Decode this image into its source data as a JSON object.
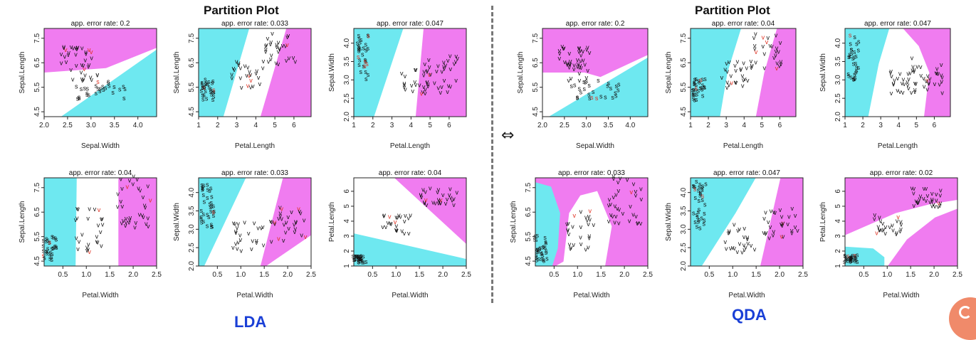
{
  "page": {
    "lda_title": "Partition Plot",
    "qda_title": "Partition Plot",
    "lda_label": "LDA",
    "qda_label": "QDA",
    "arrow_symbol": "⇔"
  },
  "colors": {
    "setosa_region": "#6ee8f0",
    "versicolor_region": "#ffffff",
    "virginica_region": "#f07cf0",
    "point": "#111111",
    "misclassified": "#e03020"
  },
  "chart_data": [
    {
      "type": "scatter",
      "method": "LDA",
      "title": "app. error rate: 0.2",
      "xlabel": "Sepal.Width",
      "ylabel": "Sepal.Length",
      "xticks": [
        2.0,
        2.5,
        3.0,
        3.5,
        4.0
      ],
      "xtick_labels": [
        "2.0",
        "2.5",
        "3.0",
        "3.5",
        "4.0"
      ],
      "yticks": [
        4.5,
        5.5,
        6.5,
        7.5
      ],
      "ytick_labels": [
        "4.5",
        "5.5",
        "6.5",
        "7.5"
      ],
      "xlim": [
        2.0,
        4.4
      ],
      "ylim": [
        4.3,
        7.9
      ]
    },
    {
      "type": "scatter",
      "method": "LDA",
      "title": "app. error rate: 0.033",
      "xlabel": "Petal.Length",
      "ylabel": "Sepal.Length",
      "xticks": [
        1,
        2,
        3,
        4,
        5,
        6
      ],
      "xtick_labels": [
        "1",
        "2",
        "3",
        "4",
        "5",
        "6"
      ],
      "yticks": [
        4.5,
        5.5,
        6.5,
        7.5
      ],
      "ytick_labels": [
        "4.5",
        "5.5",
        "6.5",
        "7.5"
      ],
      "xlim": [
        1.0,
        6.9
      ],
      "ylim": [
        4.3,
        7.9
      ]
    },
    {
      "type": "scatter",
      "method": "LDA",
      "title": "app. error rate: 0.047",
      "xlabel": "Petal.Length",
      "ylabel": "Sepal.Width",
      "xticks": [
        1,
        2,
        3,
        4,
        5,
        6
      ],
      "xtick_labels": [
        "1",
        "2",
        "3",
        "4",
        "5",
        "6"
      ],
      "yticks": [
        2.0,
        2.5,
        3.0,
        3.5,
        4.0
      ],
      "ytick_labels": [
        "2.0",
        "2.5",
        "3.0",
        "3.5",
        "4.0"
      ],
      "xlim": [
        1.0,
        6.9
      ],
      "ylim": [
        2.0,
        4.4
      ]
    },
    {
      "type": "scatter",
      "method": "LDA",
      "title": "app. error rate: 0.04",
      "xlabel": "Petal.Width",
      "ylabel": "Sepal.Length",
      "xticks": [
        0.5,
        1.0,
        1.5,
        2.0,
        2.5
      ],
      "xtick_labels": [
        "0.5",
        "1.0",
        "1.5",
        "2.0",
        "2.5"
      ],
      "yticks": [
        4.5,
        5.5,
        6.5,
        7.5
      ],
      "ytick_labels": [
        "4.5",
        "5.5",
        "6.5",
        "7.5"
      ],
      "xlim": [
        0.1,
        2.5
      ],
      "ylim": [
        4.3,
        7.9
      ]
    },
    {
      "type": "scatter",
      "method": "LDA",
      "title": "app. error rate: 0.033",
      "xlabel": "Petal.Width",
      "ylabel": "Sepal.Width",
      "xticks": [
        0.5,
        1.0,
        1.5,
        2.0,
        2.5
      ],
      "xtick_labels": [
        "0.5",
        "1.0",
        "1.5",
        "2.0",
        "2.5"
      ],
      "yticks": [
        2.0,
        2.5,
        3.0,
        3.5,
        4.0
      ],
      "ytick_labels": [
        "2.0",
        "2.5",
        "3.0",
        "3.5",
        "4.0"
      ],
      "xlim": [
        0.1,
        2.5
      ],
      "ylim": [
        2.0,
        4.4
      ]
    },
    {
      "type": "scatter",
      "method": "LDA",
      "title": "app. error rate: 0.04",
      "xlabel": "Petal.Width",
      "ylabel": "Petal.Length",
      "xticks": [
        0.5,
        1.0,
        1.5,
        2.0,
        2.5
      ],
      "xtick_labels": [
        "0.5",
        "1.0",
        "1.5",
        "2.0",
        "2.5"
      ],
      "yticks": [
        1,
        2,
        3,
        4,
        5,
        6
      ],
      "ytick_labels": [
        "1",
        "2",
        "3",
        "4",
        "5",
        "6"
      ],
      "xlim": [
        0.1,
        2.5
      ],
      "ylim": [
        1.0,
        6.9
      ]
    },
    {
      "type": "scatter",
      "method": "QDA",
      "title": "app. error rate: 0.2",
      "xlabel": "Sepal.Width",
      "ylabel": "Sepal.Length",
      "xticks": [
        2.0,
        2.5,
        3.0,
        3.5,
        4.0
      ],
      "xtick_labels": [
        "2.0",
        "2.5",
        "3.0",
        "3.5",
        "4.0"
      ],
      "yticks": [
        4.5,
        5.5,
        6.5,
        7.5
      ],
      "ytick_labels": [
        "4.5",
        "5.5",
        "6.5",
        "7.5"
      ],
      "xlim": [
        2.0,
        4.4
      ],
      "ylim": [
        4.3,
        7.9
      ]
    },
    {
      "type": "scatter",
      "method": "QDA",
      "title": "app. error rate: 0.04",
      "xlabel": "Petal.Length",
      "ylabel": "Sepal.Length",
      "xticks": [
        1,
        2,
        3,
        4,
        5,
        6
      ],
      "xtick_labels": [
        "1",
        "2",
        "3",
        "4",
        "5",
        "6"
      ],
      "yticks": [
        4.5,
        5.5,
        6.5,
        7.5
      ],
      "ytick_labels": [
        "4.5",
        "5.5",
        "6.5",
        "7.5"
      ],
      "xlim": [
        1.0,
        6.9
      ],
      "ylim": [
        4.3,
        7.9
      ]
    },
    {
      "type": "scatter",
      "method": "QDA",
      "title": "app. error rate: 0.047",
      "xlabel": "Petal.Length",
      "ylabel": "Sepal.Width",
      "xticks": [
        1,
        2,
        3,
        4,
        5,
        6
      ],
      "xtick_labels": [
        "1",
        "2",
        "3",
        "4",
        "5",
        "6"
      ],
      "yticks": [
        2.0,
        2.5,
        3.0,
        3.5,
        4.0
      ],
      "ytick_labels": [
        "2.0",
        "2.5",
        "3.0",
        "3.5",
        "4.0"
      ],
      "xlim": [
        1.0,
        6.9
      ],
      "ylim": [
        2.0,
        4.4
      ]
    },
    {
      "type": "scatter",
      "method": "QDA",
      "title": "app. error rate: 0.033",
      "xlabel": "Petal.Width",
      "ylabel": "Sepal.Length",
      "xticks": [
        0.5,
        1.0,
        1.5,
        2.0,
        2.5
      ],
      "xtick_labels": [
        "0.5",
        "1.0",
        "1.5",
        "2.0",
        "2.5"
      ],
      "yticks": [
        4.5,
        5.5,
        6.5,
        7.5
      ],
      "ytick_labels": [
        "4.5",
        "5.5",
        "6.5",
        "7.5"
      ],
      "xlim": [
        0.1,
        2.5
      ],
      "ylim": [
        4.3,
        7.9
      ]
    },
    {
      "type": "scatter",
      "method": "QDA",
      "title": "app. error rate: 0.047",
      "xlabel": "Petal.Width",
      "ylabel": "Sepal.Width",
      "xticks": [
        0.5,
        1.0,
        1.5,
        2.0,
        2.5
      ],
      "xtick_labels": [
        "0.5",
        "1.0",
        "1.5",
        "2.0",
        "2.5"
      ],
      "yticks": [
        2.0,
        2.5,
        3.0,
        3.5,
        4.0
      ],
      "ytick_labels": [
        "2.0",
        "2.5",
        "3.0",
        "3.5",
        "4.0"
      ],
      "xlim": [
        0.1,
        2.5
      ],
      "ylim": [
        2.0,
        4.4
      ]
    },
    {
      "type": "scatter",
      "method": "QDA",
      "title": "app. error rate: 0.02",
      "xlabel": "Petal.Width",
      "ylabel": "Petal.Length",
      "xticks": [
        0.5,
        1.0,
        1.5,
        2.0,
        2.5
      ],
      "xtick_labels": [
        "0.5",
        "1.0",
        "1.5",
        "2.0",
        "2.5"
      ],
      "yticks": [
        1,
        2,
        3,
        4,
        5,
        6
      ],
      "ytick_labels": [
        "1",
        "2",
        "3",
        "4",
        "5",
        "6"
      ],
      "xlim": [
        0.1,
        2.5
      ],
      "ylim": [
        1.0,
        6.9
      ]
    }
  ]
}
